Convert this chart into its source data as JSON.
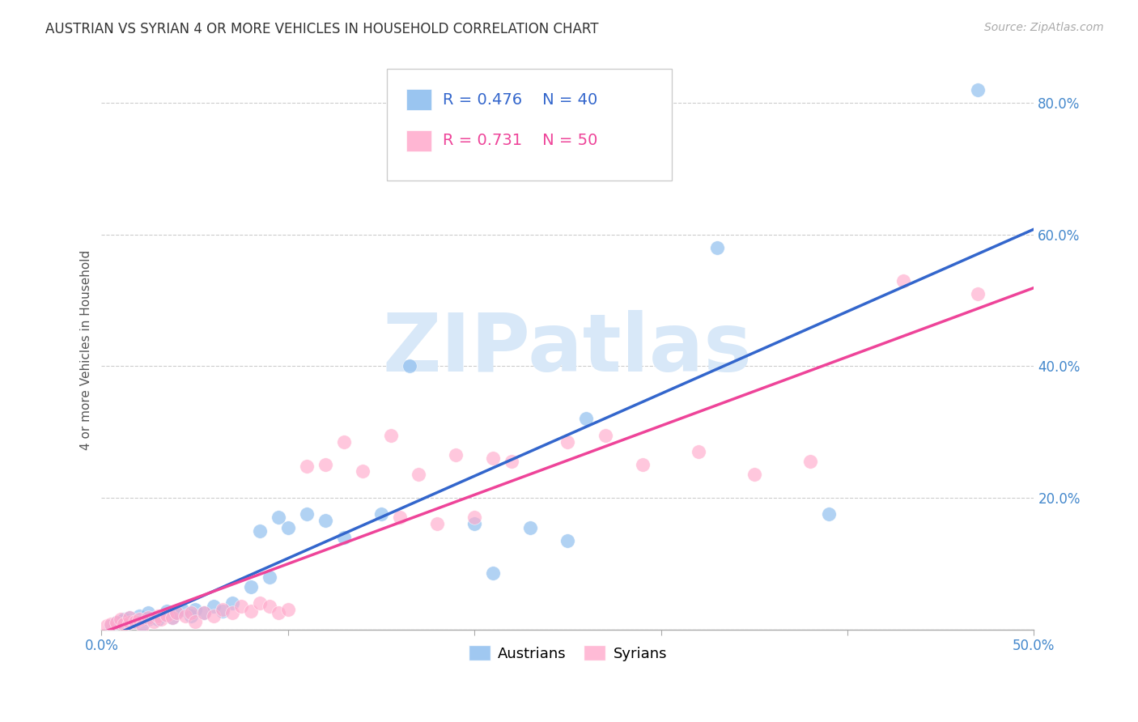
{
  "title": "AUSTRIAN VS SYRIAN 4 OR MORE VEHICLES IN HOUSEHOLD CORRELATION CHART",
  "source": "Source: ZipAtlas.com",
  "ylabel": "4 or more Vehicles in Household",
  "xlim": [
    0.0,
    0.5
  ],
  "ylim": [
    0.0,
    0.85
  ],
  "xticks": [
    0.0,
    0.1,
    0.2,
    0.3,
    0.4,
    0.5
  ],
  "yticks": [
    0.0,
    0.2,
    0.4,
    0.6,
    0.8
  ],
  "xticklabels": [
    "0.0%",
    "",
    "",
    "",
    "",
    "50.0%"
  ],
  "yticklabels": [
    "",
    "20.0%",
    "40.0%",
    "60.0%",
    "80.0%"
  ],
  "R_blue": 0.476,
  "N_blue": 40,
  "R_pink": 0.731,
  "N_pink": 50,
  "blue_color": "#88bbee",
  "pink_color": "#ffaacc",
  "line_blue_color": "#3366cc",
  "line_pink_color": "#ee4499",
  "blue_x": [
    0.005,
    0.008,
    0.01,
    0.012,
    0.015,
    0.018,
    0.02,
    0.022,
    0.025,
    0.025,
    0.03,
    0.032,
    0.035,
    0.038,
    0.04,
    0.043,
    0.048,
    0.05,
    0.055,
    0.06,
    0.065,
    0.07,
    0.08,
    0.085,
    0.09,
    0.095,
    0.1,
    0.11,
    0.12,
    0.13,
    0.15,
    0.165,
    0.2,
    0.21,
    0.23,
    0.25,
    0.26,
    0.33,
    0.39,
    0.47
  ],
  "blue_y": [
    0.005,
    0.01,
    0.012,
    0.015,
    0.018,
    0.012,
    0.02,
    0.008,
    0.015,
    0.025,
    0.015,
    0.02,
    0.028,
    0.018,
    0.025,
    0.03,
    0.02,
    0.03,
    0.025,
    0.035,
    0.028,
    0.04,
    0.065,
    0.15,
    0.08,
    0.17,
    0.155,
    0.175,
    0.165,
    0.14,
    0.175,
    0.4,
    0.16,
    0.085,
    0.155,
    0.135,
    0.32,
    0.58,
    0.175,
    0.82
  ],
  "pink_x": [
    0.003,
    0.005,
    0.008,
    0.01,
    0.012,
    0.015,
    0.015,
    0.018,
    0.02,
    0.022,
    0.025,
    0.028,
    0.03,
    0.032,
    0.035,
    0.038,
    0.04,
    0.045,
    0.048,
    0.05,
    0.055,
    0.06,
    0.065,
    0.07,
    0.075,
    0.08,
    0.085,
    0.09,
    0.095,
    0.1,
    0.11,
    0.12,
    0.13,
    0.14,
    0.155,
    0.16,
    0.17,
    0.18,
    0.19,
    0.2,
    0.21,
    0.22,
    0.25,
    0.27,
    0.29,
    0.32,
    0.35,
    0.38,
    0.43,
    0.47
  ],
  "pink_y": [
    0.005,
    0.008,
    0.01,
    0.015,
    0.008,
    0.01,
    0.018,
    0.012,
    0.015,
    0.005,
    0.018,
    0.012,
    0.02,
    0.015,
    0.022,
    0.018,
    0.025,
    0.02,
    0.025,
    0.012,
    0.025,
    0.02,
    0.03,
    0.025,
    0.035,
    0.028,
    0.04,
    0.035,
    0.025,
    0.03,
    0.248,
    0.25,
    0.285,
    0.24,
    0.295,
    0.17,
    0.235,
    0.16,
    0.265,
    0.17,
    0.26,
    0.255,
    0.285,
    0.295,
    0.25,
    0.27,
    0.235,
    0.255,
    0.53,
    0.51
  ]
}
